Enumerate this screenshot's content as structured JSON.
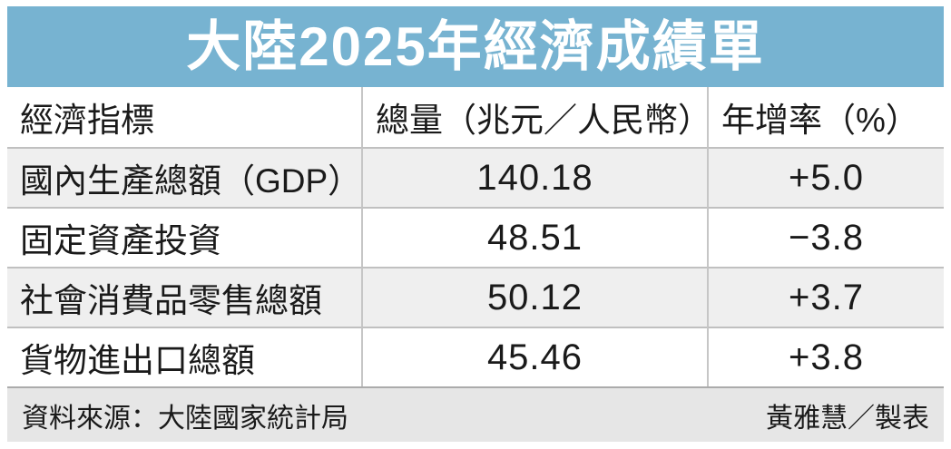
{
  "title": "大陸2025年經濟成績單",
  "colors": {
    "banner_blue": "#77b3d1",
    "alt_row_gray": "#efefef",
    "footer_gray": "#e6e6e6",
    "divider_gray": "#c6c6c6",
    "title_text": "#ffffff",
    "body_text": "#1a1a1a"
  },
  "chart_data": {
    "type": "table",
    "title": "大陸2025年經濟成績單",
    "columns": [
      "經濟指標",
      "總量（兆元／人民幣）",
      "年增率（%）"
    ],
    "rows": [
      [
        "國內生產總額（GDP）",
        "140.18",
        "+5.0"
      ],
      [
        "固定資產投資",
        "48.51",
        "−3.8"
      ],
      [
        "社會消費品零售總額",
        "50.12",
        "+3.7"
      ],
      [
        "貨物進出口總額",
        "45.46",
        "+3.8"
      ]
    ],
    "layout_hints": {
      "header_background": "white",
      "alternating_rows": "rows 1 and 3 shaded light gray",
      "indicator_align": "left",
      "value_align": "center"
    }
  },
  "footer": {
    "source": "資料來源：大陸國家統計局",
    "credit": "黃雅慧／製表"
  }
}
